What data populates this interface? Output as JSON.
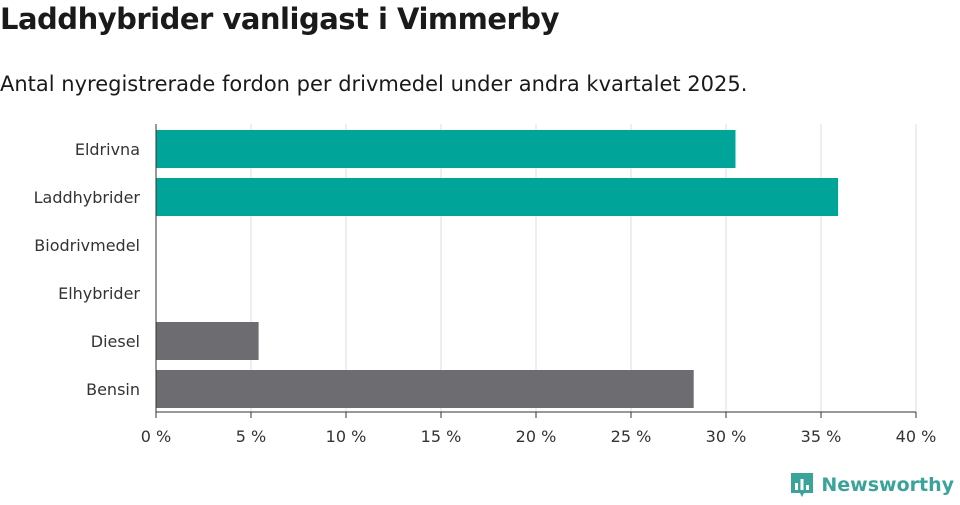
{
  "title": "Laddhybrider vanligast i Vimmerby",
  "subtitle": "Antal nyregistrerade fordon per drivmedel under andra kvartalet 2025.",
  "logo": {
    "text": "Newsworthy",
    "icon": "bar-chart-logo-icon",
    "color": "#3aa39a"
  },
  "chart_data": {
    "type": "bar",
    "orientation": "horizontal",
    "categories": [
      "Eldrivna",
      "Laddhybrider",
      "Biodrivmedel",
      "Elhybrider",
      "Diesel",
      "Bensin"
    ],
    "values": [
      30.5,
      35.9,
      0,
      0,
      5.4,
      28.3
    ],
    "colors": [
      "#00a499",
      "#00a499",
      "#00a499",
      "#00a499",
      "#6d6c70",
      "#6d6c70"
    ],
    "xlim": [
      0,
      40
    ],
    "xticks": [
      0,
      5,
      10,
      15,
      20,
      25,
      30,
      35,
      40
    ],
    "xtick_labels": [
      "0 %",
      "5 %",
      "10 %",
      "15 %",
      "20 %",
      "25 %",
      "30 %",
      "35 %",
      "40 %"
    ],
    "grid": true
  }
}
